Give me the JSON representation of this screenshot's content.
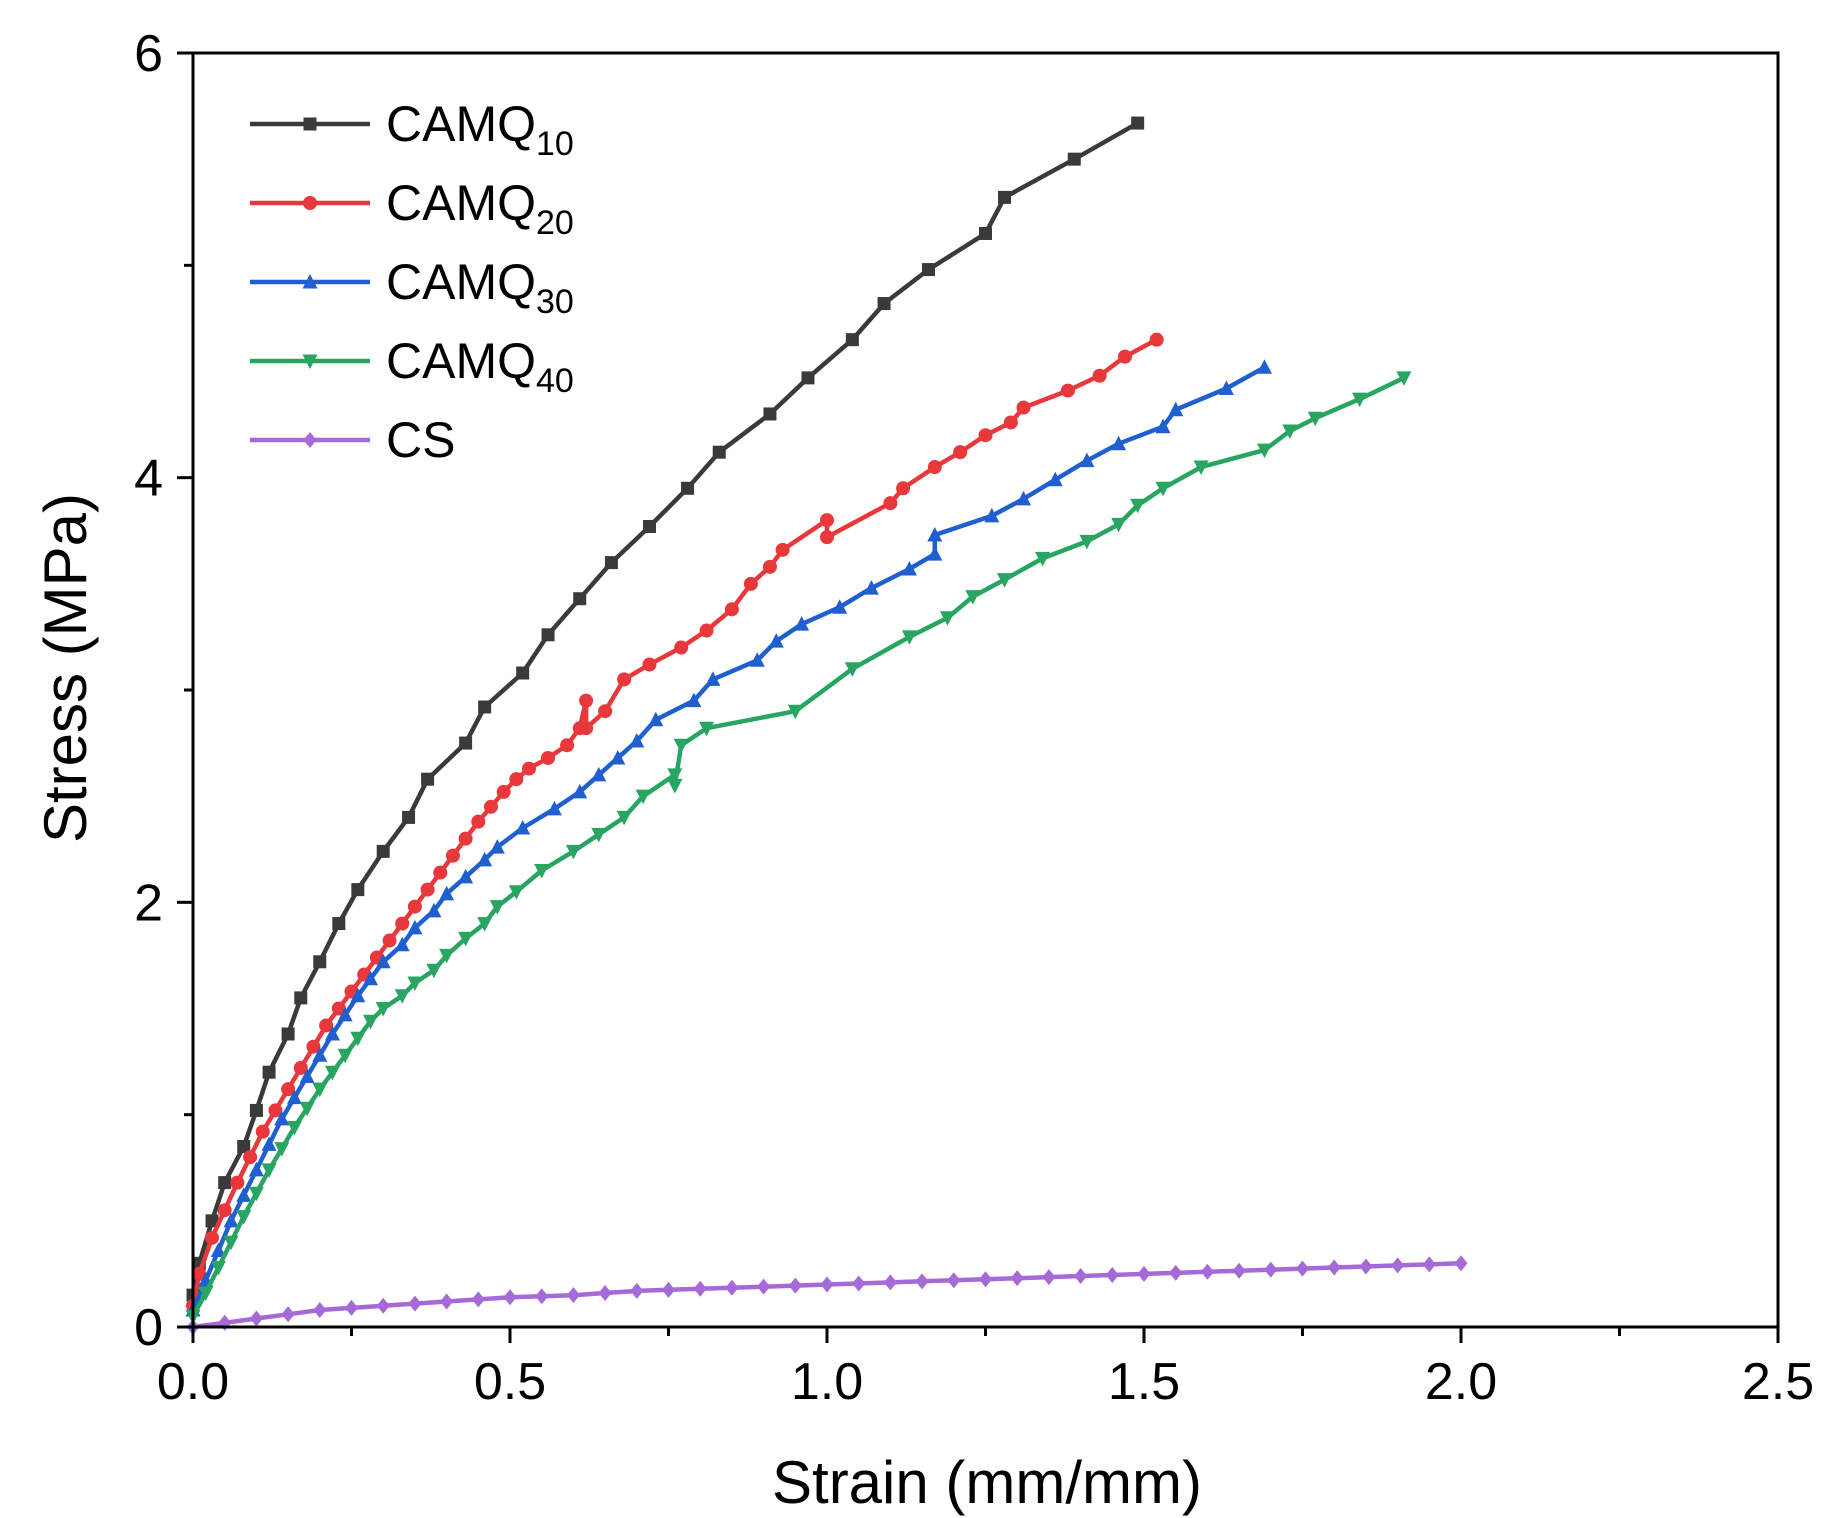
{
  "chart_data": {
    "type": "line",
    "title": "",
    "xlabel": "Strain (mm/mm)",
    "ylabel": "Stress (MPa)",
    "xlim": [
      0,
      2.5
    ],
    "ylim": [
      0,
      6
    ],
    "x_ticks": [
      0.0,
      0.5,
      1.0,
      1.5,
      2.0,
      2.5
    ],
    "x_tick_labels": [
      "0.0",
      "0.5",
      "1.0",
      "1.5",
      "2.0",
      "2.5"
    ],
    "y_ticks": [
      0,
      2,
      4,
      6
    ],
    "y_tick_labels": [
      "0",
      "2",
      "4",
      "6"
    ],
    "y_minor_ticks": [
      1,
      3,
      5
    ],
    "x_minor_ticks": [
      0.25,
      0.75,
      1.25,
      1.75,
      2.25
    ],
    "grid": false,
    "legend_position": "top-left",
    "series": [
      {
        "name": "CAMQ10",
        "label_base": "CAMQ",
        "label_sub": "10",
        "color": "#3a3a3a",
        "marker": "square",
        "x": [
          0,
          0.01,
          0.03,
          0.05,
          0.08,
          0.1,
          0.12,
          0.15,
          0.17,
          0.2,
          0.23,
          0.26,
          0.3,
          0.34,
          0.37,
          0.43,
          0.46,
          0.52,
          0.56,
          0.61,
          0.66,
          0.72,
          0.78,
          0.83,
          0.91,
          0.97,
          1.04,
          1.09,
          1.16,
          1.25,
          1.28,
          1.39,
          1.49
        ],
        "y": [
          0.15,
          0.3,
          0.5,
          0.68,
          0.85,
          1.02,
          1.2,
          1.38,
          1.55,
          1.72,
          1.9,
          2.06,
          2.24,
          2.4,
          2.58,
          2.75,
          2.92,
          3.08,
          3.26,
          3.43,
          3.6,
          3.77,
          3.95,
          4.12,
          4.3,
          4.47,
          4.65,
          4.82,
          4.98,
          5.15,
          5.32,
          5.5,
          5.67
        ]
      },
      {
        "name": "CAMQ20",
        "label_base": "CAMQ",
        "label_sub": "20",
        "color": "#e8383b",
        "marker": "circle",
        "x": [
          0,
          0.01,
          0.03,
          0.05,
          0.07,
          0.09,
          0.11,
          0.13,
          0.15,
          0.17,
          0.19,
          0.21,
          0.23,
          0.25,
          0.27,
          0.29,
          0.31,
          0.33,
          0.35,
          0.37,
          0.39,
          0.41,
          0.43,
          0.45,
          0.47,
          0.49,
          0.51,
          0.53,
          0.56,
          0.59,
          0.61,
          0.62,
          0.62,
          0.65,
          0.68,
          0.72,
          0.77,
          0.81,
          0.85,
          0.88,
          0.91,
          0.93,
          1.0,
          1.0,
          1.1,
          1.12,
          1.17,
          1.21,
          1.25,
          1.29,
          1.31,
          1.38,
          1.43,
          1.47,
          1.52
        ],
        "y": [
          0.1,
          0.25,
          0.42,
          0.55,
          0.68,
          0.8,
          0.92,
          1.02,
          1.12,
          1.22,
          1.32,
          1.42,
          1.5,
          1.58,
          1.66,
          1.74,
          1.82,
          1.9,
          1.98,
          2.06,
          2.14,
          2.22,
          2.3,
          2.38,
          2.45,
          2.52,
          2.58,
          2.63,
          2.68,
          2.74,
          2.82,
          2.95,
          2.82,
          2.9,
          3.05,
          3.12,
          3.2,
          3.28,
          3.38,
          3.5,
          3.58,
          3.66,
          3.8,
          3.72,
          3.88,
          3.95,
          4.05,
          4.12,
          4.2,
          4.26,
          4.33,
          4.41,
          4.48,
          4.57,
          4.65
        ]
      },
      {
        "name": "CAMQ30",
        "label_base": "CAMQ",
        "label_sub": "30",
        "color": "#1f5fcf",
        "marker": "triangle-up",
        "x": [
          0,
          0.02,
          0.04,
          0.06,
          0.08,
          0.1,
          0.12,
          0.14,
          0.16,
          0.18,
          0.2,
          0.22,
          0.24,
          0.26,
          0.28,
          0.3,
          0.33,
          0.35,
          0.38,
          0.4,
          0.43,
          0.46,
          0.48,
          0.52,
          0.57,
          0.61,
          0.64,
          0.67,
          0.7,
          0.73,
          0.79,
          0.82,
          0.89,
          0.92,
          0.96,
          1.02,
          1.07,
          1.13,
          1.17,
          1.17,
          1.26,
          1.31,
          1.36,
          1.41,
          1.46,
          1.53,
          1.55,
          1.63,
          1.69
        ],
        "y": [
          0.08,
          0.22,
          0.36,
          0.5,
          0.62,
          0.74,
          0.86,
          0.98,
          1.08,
          1.18,
          1.28,
          1.38,
          1.47,
          1.56,
          1.64,
          1.72,
          1.8,
          1.88,
          1.96,
          2.04,
          2.12,
          2.2,
          2.26,
          2.35,
          2.44,
          2.52,
          2.6,
          2.68,
          2.76,
          2.86,
          2.95,
          3.05,
          3.14,
          3.23,
          3.31,
          3.39,
          3.48,
          3.57,
          3.64,
          3.73,
          3.82,
          3.9,
          3.99,
          4.08,
          4.16,
          4.24,
          4.32,
          4.42,
          4.52
        ]
      },
      {
        "name": "CAMQ40",
        "label_base": "CAMQ",
        "label_sub": "40",
        "color": "#27a561",
        "marker": "triangle-down",
        "x": [
          0,
          0.02,
          0.04,
          0.06,
          0.08,
          0.1,
          0.12,
          0.14,
          0.16,
          0.18,
          0.2,
          0.22,
          0.24,
          0.26,
          0.28,
          0.3,
          0.33,
          0.35,
          0.38,
          0.4,
          0.43,
          0.46,
          0.48,
          0.51,
          0.55,
          0.6,
          0.64,
          0.68,
          0.71,
          0.76,
          0.76,
          0.77,
          0.81,
          0.95,
          1.04,
          1.13,
          1.19,
          1.23,
          1.28,
          1.34,
          1.41,
          1.46,
          1.49,
          1.53,
          1.59,
          1.69,
          1.73,
          1.77,
          1.84,
          1.91
        ],
        "y": [
          0.05,
          0.16,
          0.28,
          0.4,
          0.52,
          0.63,
          0.74,
          0.84,
          0.94,
          1.03,
          1.12,
          1.2,
          1.28,
          1.36,
          1.44,
          1.5,
          1.56,
          1.62,
          1.68,
          1.75,
          1.83,
          1.9,
          1.98,
          2.05,
          2.15,
          2.24,
          2.32,
          2.4,
          2.5,
          2.6,
          2.55,
          2.74,
          2.82,
          2.9,
          3.1,
          3.25,
          3.34,
          3.44,
          3.52,
          3.62,
          3.7,
          3.78,
          3.87,
          3.95,
          4.05,
          4.13,
          4.22,
          4.28,
          4.37,
          4.47
        ]
      },
      {
        "name": "CS",
        "label_base": "CS",
        "label_sub": "",
        "color": "#a569d8",
        "marker": "diamond",
        "x": [
          0,
          0.05,
          0.1,
          0.15,
          0.2,
          0.25,
          0.3,
          0.35,
          0.4,
          0.45,
          0.5,
          0.55,
          0.6,
          0.65,
          0.7,
          0.75,
          0.8,
          0.85,
          0.9,
          0.95,
          1.0,
          1.05,
          1.1,
          1.15,
          1.2,
          1.25,
          1.3,
          1.35,
          1.4,
          1.45,
          1.5,
          1.55,
          1.6,
          1.65,
          1.7,
          1.75,
          1.8,
          1.85,
          1.9,
          1.95,
          2.0
        ],
        "y": [
          0.0,
          0.02,
          0.04,
          0.06,
          0.08,
          0.09,
          0.1,
          0.11,
          0.12,
          0.13,
          0.14,
          0.145,
          0.15,
          0.16,
          0.17,
          0.175,
          0.18,
          0.185,
          0.19,
          0.195,
          0.2,
          0.205,
          0.21,
          0.215,
          0.22,
          0.225,
          0.23,
          0.235,
          0.24,
          0.245,
          0.25,
          0.255,
          0.26,
          0.265,
          0.27,
          0.275,
          0.28,
          0.285,
          0.29,
          0.295,
          0.3
        ]
      }
    ]
  }
}
